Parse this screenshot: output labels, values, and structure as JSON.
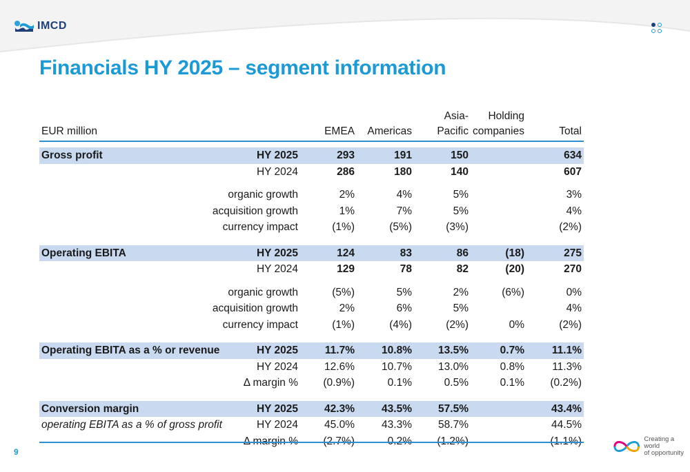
{
  "brand": {
    "name": "IMCD",
    "tagline_line1": "Creating a world",
    "tagline_line2": "of opportunity",
    "color": "#1c9ad6",
    "navy": "#1f3f78"
  },
  "title": "Financials HY 2025 – segment information",
  "page_number": "9",
  "table": {
    "header": {
      "label": "EUR million",
      "emea": "EMEA",
      "americas": "Americas",
      "apac_1": "Asia-",
      "apac_2": "Pacific",
      "holding_1": "Holding",
      "holding_2": "companies",
      "total": "Total"
    },
    "rows": [
      {
        "label": "Gross profit",
        "period": "HY 2025",
        "emea": "293",
        "americas": "191",
        "apac": "150",
        "holding": "",
        "total": "634"
      },
      {
        "label": "",
        "period": "HY 2024",
        "emea": "286",
        "americas": "180",
        "apac": "140",
        "holding": "",
        "total": "607"
      },
      {
        "label": "",
        "period": "organic growth",
        "emea": "2%",
        "americas": "4%",
        "apac": "5%",
        "holding": "",
        "total": "3%"
      },
      {
        "label": "",
        "period": "acquisition growth",
        "emea": "1%",
        "americas": "7%",
        "apac": "5%",
        "holding": "",
        "total": "4%"
      },
      {
        "label": "",
        "period": "currency impact",
        "emea": "(1%)",
        "americas": "(5%)",
        "apac": "(3%)",
        "holding": "",
        "total": "(2%)"
      },
      {
        "label": "Operating EBITA",
        "period": "HY 2025",
        "emea": "124",
        "americas": "83",
        "apac": "86",
        "holding": "(18)",
        "total": "275"
      },
      {
        "label": "",
        "period": "HY 2024",
        "emea": "129",
        "americas": "78",
        "apac": "82",
        "holding": "(20)",
        "total": "270"
      },
      {
        "label": "",
        "period": "organic growth",
        "emea": "(5%)",
        "americas": "5%",
        "apac": "2%",
        "holding": "(6%)",
        "total": "0%"
      },
      {
        "label": "",
        "period": "acquisition growth",
        "emea": "2%",
        "americas": "6%",
        "apac": "5%",
        "holding": "",
        "total": "4%"
      },
      {
        "label": "",
        "period": "currency impact",
        "emea": "(1%)",
        "americas": "(4%)",
        "apac": "(2%)",
        "holding": "0%",
        "total": "(2%)"
      },
      {
        "label": "Operating EBITA as a % or revenue",
        "period": "HY 2025",
        "emea": "11.7%",
        "americas": "10.8%",
        "apac": "13.5%",
        "holding": "0.7%",
        "total": "11.1%"
      },
      {
        "label": "",
        "period": "HY 2024",
        "emea": "12.6%",
        "americas": "10.7%",
        "apac": "13.0%",
        "holding": "0.8%",
        "total": "11.3%"
      },
      {
        "label": "",
        "period": "Δ  margin %",
        "emea": "(0.9%)",
        "americas": "0.1%",
        "apac": "0.5%",
        "holding": "0.1%",
        "total": "(0.2%)"
      },
      {
        "label": "Conversion margin",
        "period": "HY 2025",
        "emea": "42.3%",
        "americas": "43.5%",
        "apac": "57.5%",
        "holding": "",
        "total": "43.4%"
      },
      {
        "label": "operating EBITA as a % of gross profit",
        "period": "HY 2024",
        "emea": "45.0%",
        "americas": "43.3%",
        "apac": "58.7%",
        "holding": "",
        "total": "44.5%"
      },
      {
        "label": "",
        "period": "Δ  margin %",
        "emea": "(2.7%)",
        "americas": "0.2%",
        "apac": "(1.2%)",
        "holding": "",
        "total": "(1.1%)"
      }
    ]
  }
}
